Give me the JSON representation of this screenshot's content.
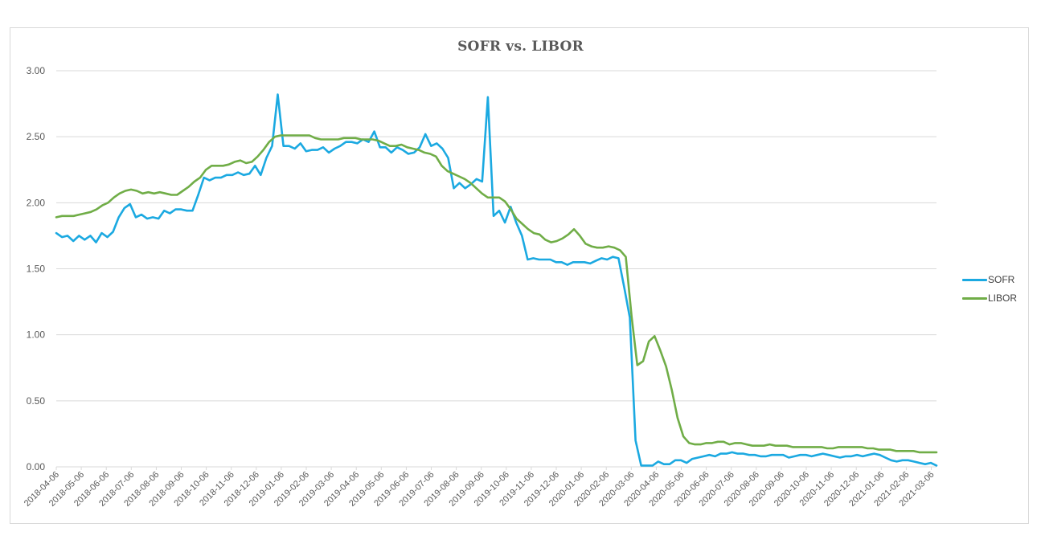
{
  "chart_data": {
    "type": "line",
    "title": "SOFR vs. LIBOR",
    "xlabel": "",
    "ylabel": "",
    "ylim": [
      0,
      3
    ],
    "yticks": [
      "0.00",
      "0.50",
      "1.00",
      "1.50",
      "2.00",
      "2.50",
      "3.00"
    ],
    "grid": true,
    "legend_position": "right",
    "x_tick_labels": [
      "2018-04-06",
      "2018-05-06",
      "2018-06-06",
      "2018-07-06",
      "2018-08-06",
      "2018-09-06",
      "2018-10-06",
      "2018-11-06",
      "2018-12-06",
      "2019-01-06",
      "2019-02-06",
      "2019-03-06",
      "2019-04-06",
      "2019-05-06",
      "2019-06-06",
      "2019-07-06",
      "2019-08-06",
      "2019-09-06",
      "2019-10-06",
      "2019-11-06",
      "2019-12-06",
      "2020-01-06",
      "2020-02-06",
      "2020-03-06",
      "2020-04-06",
      "2020-05-06",
      "2020-06-06",
      "2020-07-06",
      "2020-08-06",
      "2020-09-06",
      "2020-10-06",
      "2020-11-06",
      "2020-12-06",
      "2021-01-06",
      "2021-02-06",
      "2021-03-06"
    ],
    "x_start": "2018-04-06",
    "x_step": "weekly",
    "series": [
      {
        "name": "SOFR",
        "color": "#1BA9E1",
        "values": [
          1.77,
          1.74,
          1.75,
          1.71,
          1.75,
          1.72,
          1.75,
          1.7,
          1.77,
          1.74,
          1.78,
          1.89,
          1.96,
          1.99,
          1.89,
          1.91,
          1.88,
          1.89,
          1.88,
          1.94,
          1.92,
          1.95,
          1.95,
          1.94,
          1.94,
          2.06,
          2.19,
          2.17,
          2.19,
          2.19,
          2.21,
          2.21,
          2.23,
          2.21,
          2.22,
          2.28,
          2.21,
          2.34,
          2.43,
          2.82,
          2.43,
          2.43,
          2.41,
          2.45,
          2.39,
          2.4,
          2.4,
          2.42,
          2.38,
          2.41,
          2.43,
          2.46,
          2.46,
          2.45,
          2.48,
          2.46,
          2.54,
          2.42,
          2.42,
          2.38,
          2.42,
          2.4,
          2.37,
          2.38,
          2.42,
          2.52,
          2.43,
          2.45,
          2.41,
          2.34,
          2.11,
          2.15,
          2.11,
          2.14,
          2.18,
          2.16,
          2.8,
          1.9,
          1.94,
          1.85,
          1.97,
          1.85,
          1.75,
          1.57,
          1.58,
          1.57,
          1.57,
          1.57,
          1.55,
          1.55,
          1.53,
          1.55,
          1.55,
          1.55,
          1.54,
          1.56,
          1.58,
          1.57,
          1.59,
          1.58,
          1.36,
          1.13,
          0.2,
          0.01,
          0.01,
          0.01,
          0.04,
          0.02,
          0.02,
          0.05,
          0.05,
          0.03,
          0.06,
          0.07,
          0.08,
          0.09,
          0.08,
          0.1,
          0.1,
          0.11,
          0.1,
          0.1,
          0.09,
          0.09,
          0.08,
          0.08,
          0.09,
          0.09,
          0.09,
          0.07,
          0.08,
          0.09,
          0.09,
          0.08,
          0.09,
          0.1,
          0.09,
          0.08,
          0.07,
          0.08,
          0.08,
          0.09,
          0.08,
          0.09,
          0.1,
          0.09,
          0.07,
          0.05,
          0.04,
          0.05,
          0.05,
          0.04,
          0.03,
          0.02,
          0.03,
          0.01
        ]
      },
      {
        "name": "LIBOR",
        "color": "#70AD47",
        "values": [
          1.89,
          1.9,
          1.9,
          1.9,
          1.91,
          1.92,
          1.93,
          1.95,
          1.98,
          2.0,
          2.04,
          2.07,
          2.09,
          2.1,
          2.09,
          2.07,
          2.08,
          2.07,
          2.08,
          2.07,
          2.06,
          2.06,
          2.09,
          2.12,
          2.16,
          2.19,
          2.25,
          2.28,
          2.28,
          2.28,
          2.29,
          2.31,
          2.32,
          2.3,
          2.31,
          2.35,
          2.4,
          2.46,
          2.5,
          2.51,
          2.51,
          2.51,
          2.51,
          2.51,
          2.51,
          2.49,
          2.48,
          2.48,
          2.48,
          2.48,
          2.49,
          2.49,
          2.49,
          2.48,
          2.48,
          2.48,
          2.47,
          2.45,
          2.43,
          2.43,
          2.44,
          2.42,
          2.41,
          2.4,
          2.38,
          2.37,
          2.35,
          2.28,
          2.24,
          2.22,
          2.2,
          2.18,
          2.15,
          2.11,
          2.07,
          2.04,
          2.04,
          2.04,
          2.01,
          1.95,
          1.88,
          1.84,
          1.8,
          1.77,
          1.76,
          1.72,
          1.7,
          1.71,
          1.73,
          1.76,
          1.8,
          1.75,
          1.69,
          1.67,
          1.66,
          1.66,
          1.67,
          1.66,
          1.64,
          1.59,
          1.14,
          0.77,
          0.8,
          0.95,
          0.99,
          0.88,
          0.76,
          0.58,
          0.37,
          0.23,
          0.18,
          0.17,
          0.17,
          0.18,
          0.18,
          0.19,
          0.19,
          0.17,
          0.18,
          0.18,
          0.17,
          0.16,
          0.16,
          0.16,
          0.17,
          0.16,
          0.16,
          0.16,
          0.15,
          0.15,
          0.15,
          0.15,
          0.15,
          0.15,
          0.14,
          0.14,
          0.15,
          0.15,
          0.15,
          0.15,
          0.15,
          0.14,
          0.14,
          0.13,
          0.13,
          0.13,
          0.12,
          0.12,
          0.12,
          0.12,
          0.11,
          0.11,
          0.11,
          0.11
        ]
      }
    ]
  },
  "legend": {
    "items": [
      {
        "label": "SOFR",
        "color": "#1BA9E1"
      },
      {
        "label": "LIBOR",
        "color": "#70AD47"
      }
    ]
  }
}
